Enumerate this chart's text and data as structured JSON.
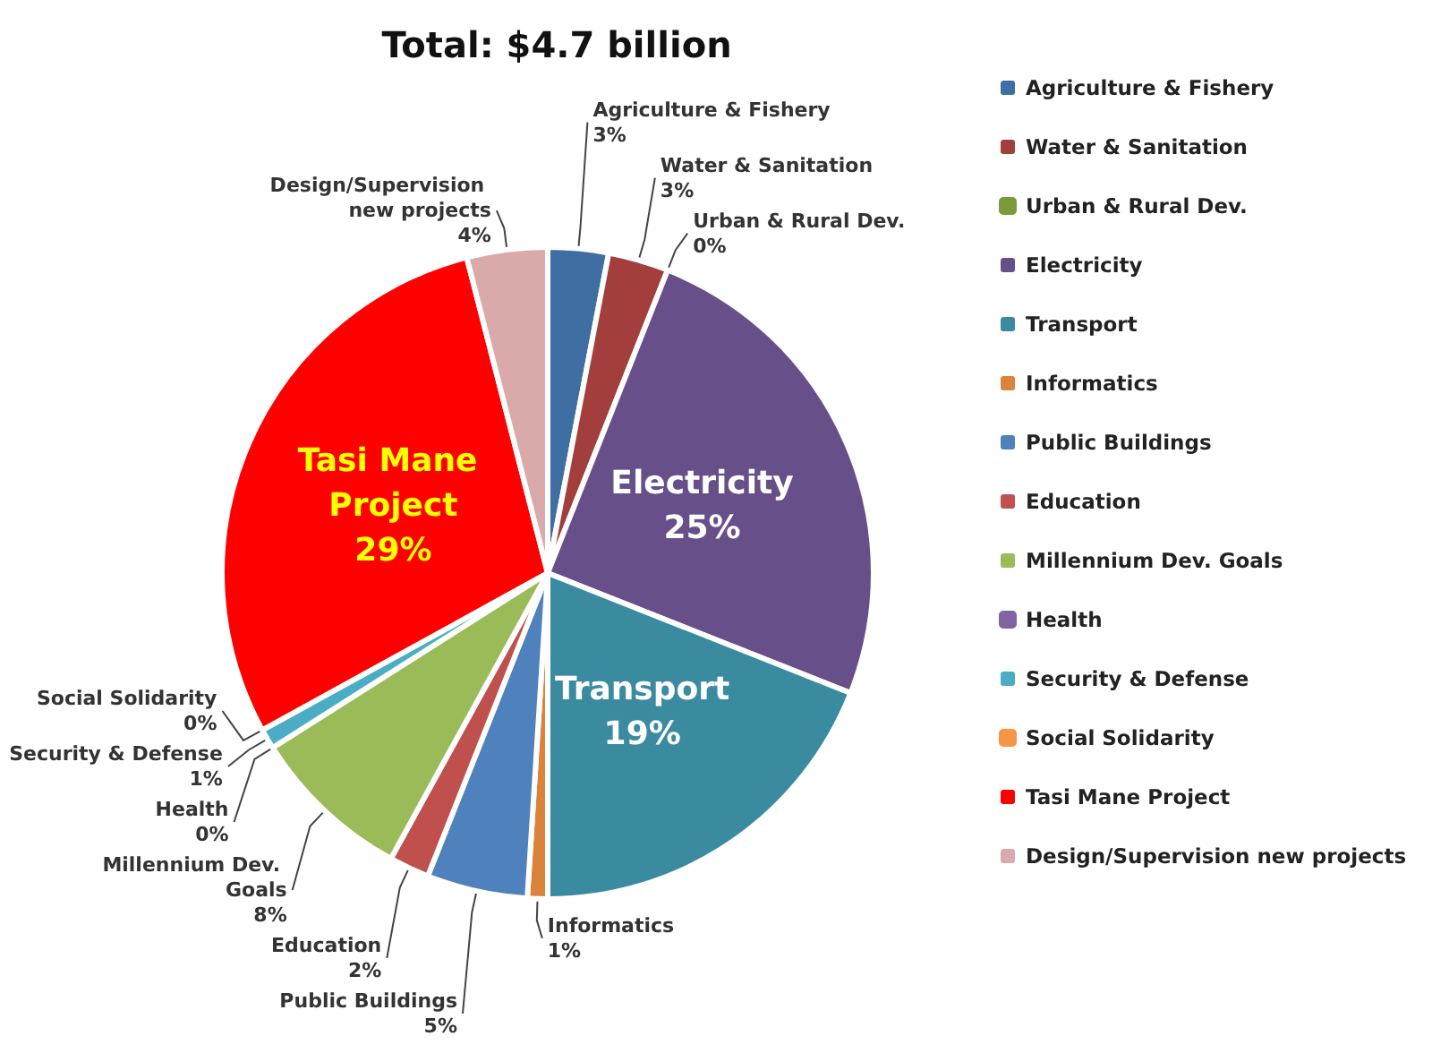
{
  "chart_data": {
    "type": "pie",
    "title": "Total: $4.7 billion",
    "categories": [
      "Agriculture & Fishery",
      "Water & Sanitation",
      "Urban & Rural Dev.",
      "Electricity",
      "Transport",
      "Informatics",
      "Public Buildings",
      "Education",
      "Millennium Dev. Goals",
      "Health",
      "Security & Defense",
      "Social Solidarity",
      "Tasi Mane Project",
      "Design/Supervision new projects"
    ],
    "values": [
      3,
      3,
      0,
      25,
      19,
      1,
      5,
      2,
      8,
      0,
      1,
      0,
      29,
      4
    ],
    "value_labels": [
      "3%",
      "3%",
      "0%",
      "25%",
      "19%",
      "1%",
      "5%",
      "2%",
      "8%",
      "0%",
      "1%",
      "0%",
      "29%",
      "4%"
    ],
    "colors": [
      "#3f6ea3",
      "#a23f3c",
      "#7a9a3a",
      "#674f8a",
      "#3a8ba0",
      "#d9843a",
      "#4f81bd",
      "#c0504d",
      "#9bbb59",
      "#8064a2",
      "#4bacc6",
      "#f79646",
      "#ff0000",
      "#d9aaa9"
    ],
    "legend": "right"
  }
}
